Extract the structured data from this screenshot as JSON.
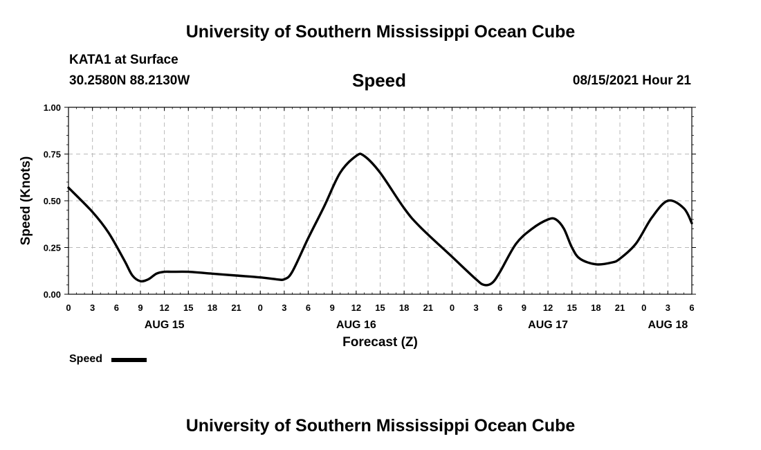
{
  "header": {
    "title": "University of Southern Mississippi Ocean Cube",
    "station": "KATA1 at Surface",
    "coords": "30.2580N  88.2130W",
    "variable": "Speed",
    "datetime": "08/15/2021 Hour 21"
  },
  "footer": {
    "title": "University of Southern Mississippi Ocean Cube"
  },
  "legend": {
    "label": "Speed"
  },
  "chart_data": {
    "type": "line",
    "ylabel": "Speed (Knots)",
    "xlabel": "Forecast (Z)",
    "ylim": [
      0,
      1
    ],
    "xlim": [
      "08/15 00Z",
      "08/18 06Z"
    ],
    "x_ticks": [
      "0",
      "3",
      "6",
      "9",
      "12",
      "15",
      "18",
      "21",
      "0",
      "3",
      "6",
      "9",
      "12",
      "15",
      "18",
      "21",
      "0",
      "3",
      "6",
      "9",
      "12",
      "15",
      "18",
      "21",
      "0",
      "3",
      "6"
    ],
    "date_labels": [
      {
        "label": "AUG 15",
        "tick_index": 4
      },
      {
        "label": "AUG 16",
        "tick_index": 12
      },
      {
        "label": "AUG 17",
        "tick_index": 20
      },
      {
        "label": "AUG 18",
        "tick_index": 25
      }
    ],
    "y_ticks": [
      "0.00",
      "0.25",
      "0.50",
      "0.75",
      "1.00"
    ],
    "grid": true,
    "legend_position": "bottom-left",
    "series": [
      {
        "name": "Speed",
        "color": "#000000",
        "x": [
          "08/15 00Z",
          "08/15 03Z",
          "08/15 05Z",
          "08/15 07Z",
          "08/15 08Z",
          "08/15 09Z",
          "08/15 10Z",
          "08/15 11Z",
          "08/15 12Z",
          "08/15 13Z",
          "08/15 15Z",
          "08/15 18Z",
          "08/15 21Z",
          "08/16 00Z",
          "08/16 02Z",
          "08/16 03Z",
          "08/16 04Z",
          "08/16 06Z",
          "08/16 08Z",
          "08/16 10Z",
          "08/16 12Z",
          "08/16 13Z",
          "08/16 15Z",
          "08/16 18Z",
          "08/16 20Z",
          "08/17 00Z",
          "08/17 03Z",
          "08/17 04Z",
          "08/17 05Z",
          "08/17 06Z",
          "08/17 08Z",
          "08/17 10Z",
          "08/17 12Z",
          "08/17 13Z",
          "08/17 14Z",
          "08/17 15Z",
          "08/17 16Z",
          "08/17 18Z",
          "08/17 20Z",
          "08/17 21Z",
          "08/17 23Z",
          "08/18 01Z",
          "08/18 03Z",
          "08/18 05Z",
          "08/18 06Z"
        ],
        "y": [
          0.57,
          0.44,
          0.33,
          0.18,
          0.1,
          0.07,
          0.08,
          0.11,
          0.12,
          0.12,
          0.12,
          0.11,
          0.1,
          0.09,
          0.08,
          0.08,
          0.12,
          0.3,
          0.47,
          0.65,
          0.74,
          0.74,
          0.65,
          0.46,
          0.36,
          0.2,
          0.08,
          0.05,
          0.06,
          0.12,
          0.27,
          0.35,
          0.4,
          0.4,
          0.35,
          0.25,
          0.19,
          0.16,
          0.17,
          0.19,
          0.27,
          0.41,
          0.5,
          0.46,
          0.38
        ]
      }
    ]
  }
}
